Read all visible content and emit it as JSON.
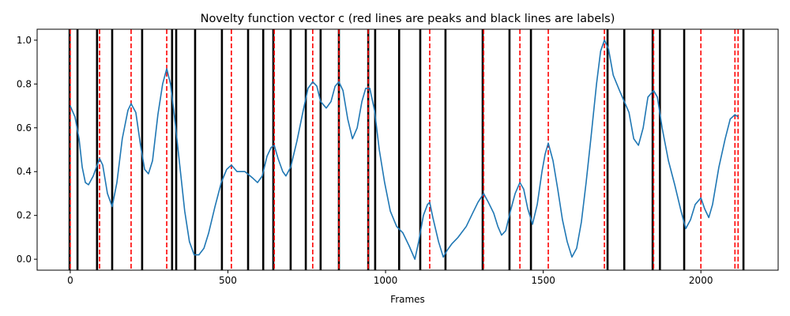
{
  "chart_data": {
    "type": "line",
    "title": "Novelty function vector c (red lines are peaks and black lines are labels)",
    "xlabel": "Frames",
    "xlim": [
      -105,
      2245
    ],
    "ylim": [
      -0.05,
      1.05
    ],
    "xticks": [
      0,
      500,
      1000,
      1500,
      2000
    ],
    "yticks": [
      {
        "value": 0,
        "label": "0.0"
      },
      {
        "value": 0.2,
        "label": "0.2"
      },
      {
        "value": 0.4,
        "label": "0.4"
      },
      {
        "value": 0.6,
        "label": "0.6"
      },
      {
        "value": 0.8,
        "label": "0.8"
      },
      {
        "value": 1,
        "label": "1.0"
      }
    ],
    "vlines": [
      {
        "color": "#000000",
        "dashed": false,
        "x": [
          -2,
          23,
          85,
          133,
          228,
          323,
          336,
          396,
          481,
          564,
          612,
          644,
          699,
          747,
          794,
          852,
          945,
          967,
          1043,
          1110,
          1190,
          1308,
          1393,
          1461,
          1704,
          1757,
          1847,
          1870,
          1947,
          2135
        ]
      },
      {
        "color": "#ff0000",
        "dashed": true,
        "x": [
          0,
          93,
          193,
          306,
          511,
          647,
          769,
          852,
          945,
          1140,
          1311,
          1426,
          1516,
          1694,
          1850,
          2000,
          2108,
          2118
        ]
      }
    ],
    "series": [
      {
        "color": "#1f77b4",
        "x": [
          0,
          15,
          28,
          38,
          48,
          58,
          73,
          93,
          103,
          118,
          133,
          148,
          165,
          183,
          193,
          208,
          223,
          236,
          248,
          261,
          278,
          293,
          306,
          318,
          333,
          348,
          363,
          378,
          393,
          408,
          424,
          439,
          459,
          479,
          496,
          511,
          529,
          554,
          579,
          594,
          609,
          624,
          637,
          647,
          659,
          674,
          684,
          699,
          719,
          739,
          754,
          769,
          782,
          794,
          812,
          827,
          840,
          852,
          865,
          880,
          895,
          910,
          925,
          937,
          950,
          965,
          980,
          997,
          1015,
          1035,
          1055,
          1075,
          1093,
          1105,
          1120,
          1133,
          1140,
          1150,
          1168,
          1183,
          1195,
          1210,
          1230,
          1256,
          1276,
          1293,
          1311,
          1326,
          1343,
          1356,
          1368,
          1381,
          1396,
          1411,
          1426,
          1438,
          1451,
          1466,
          1481,
          1496,
          1506,
          1516,
          1531,
          1546,
          1561,
          1576,
          1591,
          1606,
          1621,
          1636,
          1651,
          1669,
          1682,
          1694,
          1707,
          1722,
          1742,
          1757,
          1772,
          1787,
          1802,
          1817,
          1832,
          1850,
          1862,
          1877,
          1897,
          1917,
          1937,
          1952,
          1967,
          1982,
          2000,
          2012,
          2025,
          2037,
          2057,
          2077,
          2093,
          2108,
          2118
        ],
        "values": [
          0.7,
          0.65,
          0.55,
          0.42,
          0.35,
          0.34,
          0.38,
          0.46,
          0.43,
          0.3,
          0.24,
          0.35,
          0.55,
          0.68,
          0.71,
          0.67,
          0.52,
          0.41,
          0.39,
          0.45,
          0.66,
          0.8,
          0.87,
          0.8,
          0.62,
          0.42,
          0.22,
          0.08,
          0.02,
          0.02,
          0.05,
          0.12,
          0.24,
          0.35,
          0.41,
          0.43,
          0.4,
          0.4,
          0.37,
          0.35,
          0.38,
          0.47,
          0.51,
          0.52,
          0.46,
          0.4,
          0.38,
          0.42,
          0.54,
          0.68,
          0.78,
          0.81,
          0.79,
          0.72,
          0.69,
          0.72,
          0.79,
          0.81,
          0.77,
          0.64,
          0.55,
          0.6,
          0.72,
          0.78,
          0.78,
          0.68,
          0.5,
          0.35,
          0.22,
          0.15,
          0.12,
          0.06,
          0.0,
          0.08,
          0.2,
          0.25,
          0.26,
          0.19,
          0.08,
          0.01,
          0.04,
          0.07,
          0.1,
          0.15,
          0.21,
          0.26,
          0.3,
          0.26,
          0.21,
          0.15,
          0.11,
          0.13,
          0.22,
          0.3,
          0.35,
          0.32,
          0.23,
          0.16,
          0.25,
          0.4,
          0.48,
          0.53,
          0.45,
          0.32,
          0.18,
          0.08,
          0.01,
          0.05,
          0.17,
          0.35,
          0.55,
          0.8,
          0.95,
          1.0,
          0.96,
          0.84,
          0.77,
          0.72,
          0.67,
          0.55,
          0.52,
          0.6,
          0.74,
          0.77,
          0.74,
          0.6,
          0.45,
          0.34,
          0.22,
          0.14,
          0.18,
          0.25,
          0.28,
          0.23,
          0.19,
          0.25,
          0.42,
          0.55,
          0.64,
          0.66,
          0.65
        ]
      }
    ]
  }
}
